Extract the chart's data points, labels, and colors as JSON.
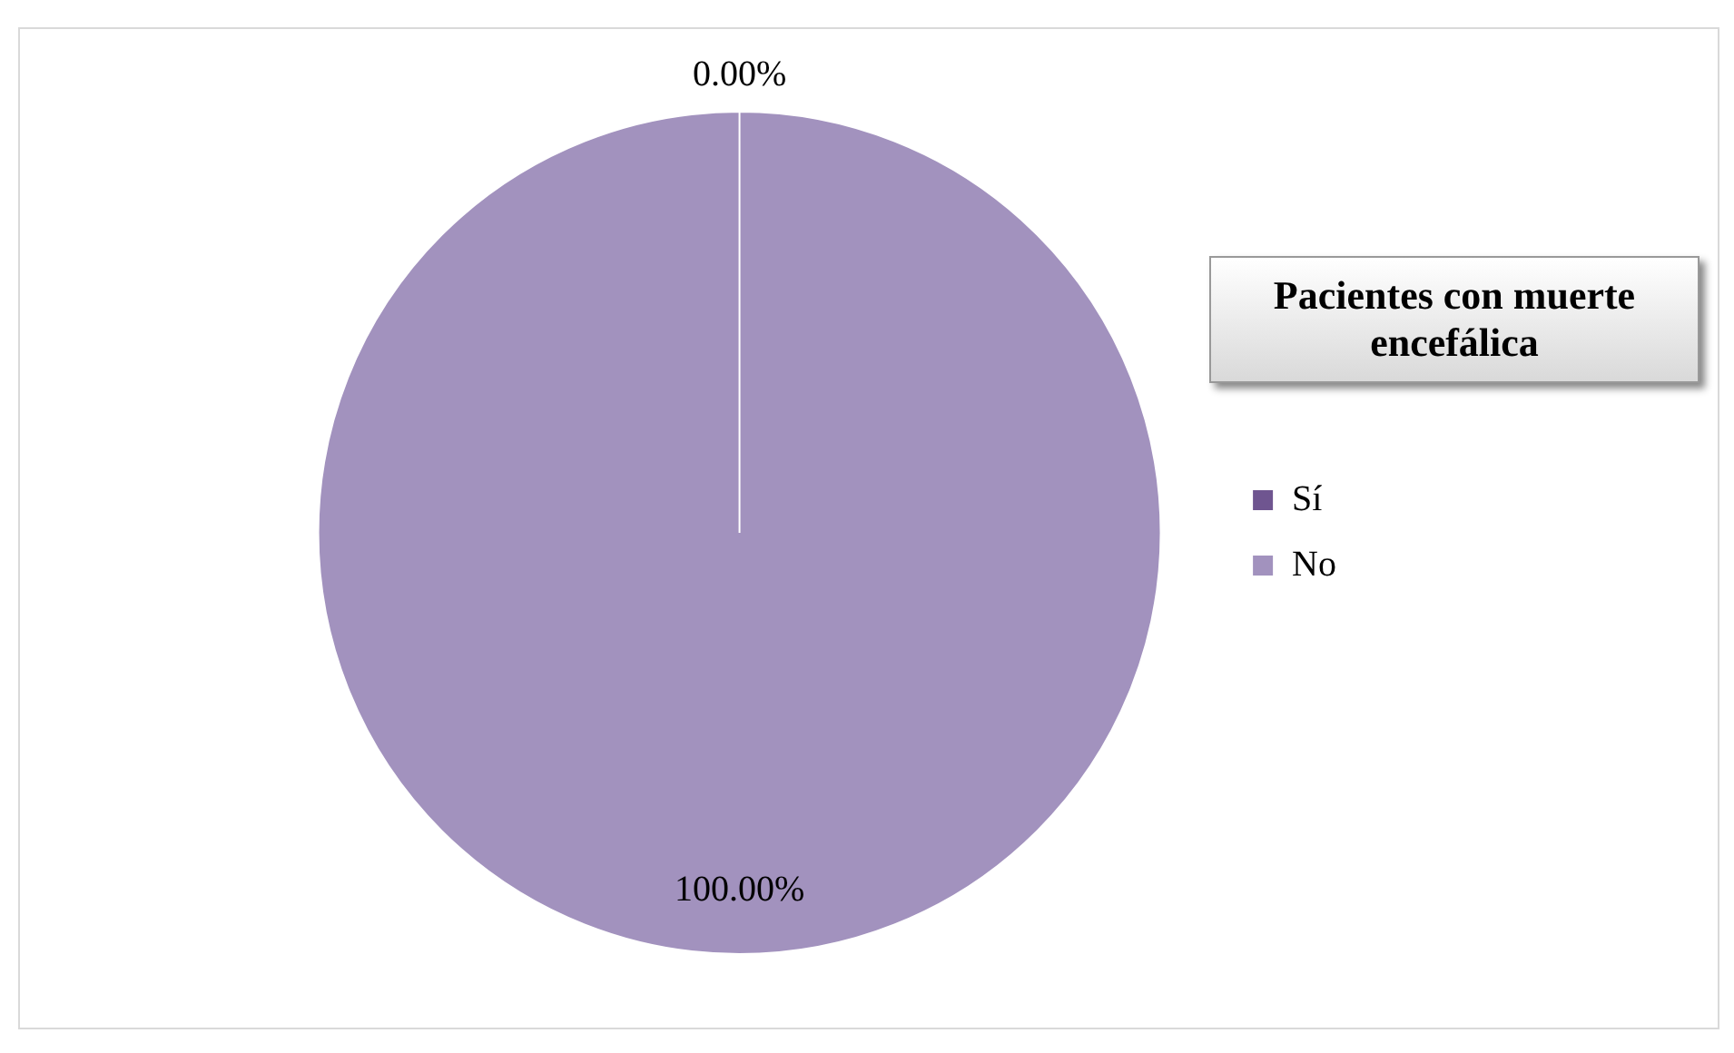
{
  "chart_data": {
    "type": "pie",
    "categories": [
      "Sí",
      "No"
    ],
    "values": [
      0,
      100
    ],
    "value_labels": [
      "0.00%",
      "100.00%"
    ],
    "colors": [
      "#6f5590",
      "#a292be"
    ],
    "legend_title": "Pacientes con muerte encefálica",
    "legend": "right"
  }
}
